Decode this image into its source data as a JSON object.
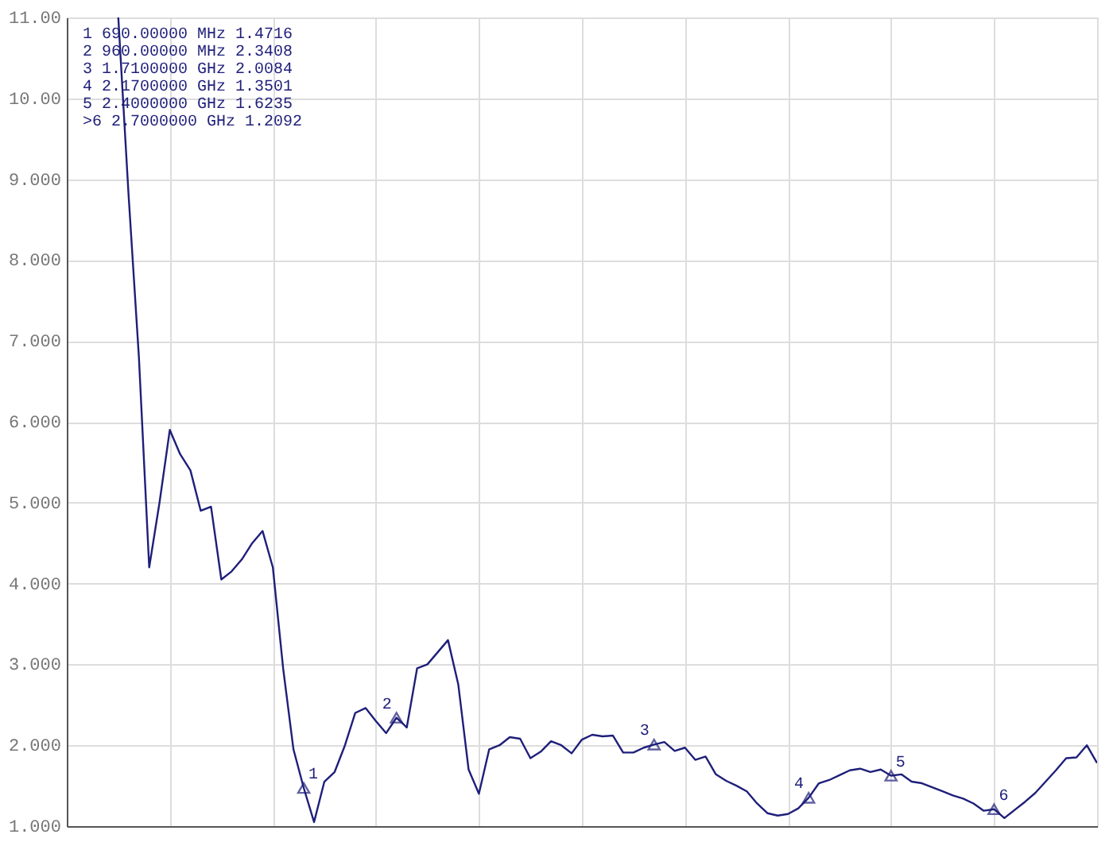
{
  "chart_data": {
    "type": "line",
    "categories": [
      null,
      null,
      null,
      null,
      null,
      null,
      null,
      null,
      null,
      null,
      null,
      null,
      null,
      null,
      null,
      null,
      null,
      null,
      null,
      null,
      null,
      null,
      null,
      null,
      null,
      null,
      null,
      null,
      null,
      null,
      null,
      null,
      null,
      null,
      null,
      null,
      null,
      null,
      null,
      null,
      null,
      null,
      null,
      null,
      null,
      null,
      null,
      null,
      null,
      null,
      null,
      null,
      null,
      null,
      null,
      null,
      null,
      null,
      null,
      null,
      null,
      null,
      null,
      null,
      null,
      null,
      null,
      null,
      null,
      null,
      null,
      null,
      null,
      null,
      null,
      null,
      null,
      null,
      null,
      null,
      null,
      null,
      null,
      null,
      null,
      null,
      null,
      null,
      null,
      null,
      null,
      null,
      null,
      null,
      null,
      null,
      null,
      null,
      null,
      null,
      null
    ],
    "series": [
      {
        "color": "#1f1f7a",
        "values": [
          null,
          null,
          null,
          null,
          null,
          11,
          8.8,
          6.8,
          4.2,
          5.0,
          5.9,
          5.6,
          5.4,
          4.9,
          4.95,
          4.05,
          4.15,
          4.3,
          4.5,
          4.65,
          4.2,
          2.95,
          1.95,
          1.4716,
          1.05,
          1.55,
          1.67,
          2.0,
          2.4,
          2.46,
          2.3,
          2.15,
          2.3408,
          2.22,
          2.95,
          3.0,
          3.15,
          3.3,
          2.75,
          1.7,
          1.4,
          1.95,
          2.0,
          2.1,
          2.08,
          1.84,
          1.92,
          2.05,
          2.0,
          1.9,
          2.07,
          2.13,
          2.11,
          2.12,
          1.91,
          1.91,
          1.97,
          2.0084,
          2.04,
          1.93,
          1.97,
          1.82,
          1.86,
          1.64,
          1.56,
          1.5,
          1.43,
          1.28,
          1.16,
          1.13,
          1.15,
          1.22,
          1.3501,
          1.53,
          1.57,
          1.63,
          1.69,
          1.71,
          1.67,
          1.7,
          1.6235,
          1.64,
          1.55,
          1.53,
          1.48,
          1.43,
          1.38,
          1.34,
          1.28,
          1.19,
          1.2092,
          1.1,
          1.2,
          1.3,
          1.41,
          1.55,
          1.69,
          1.84,
          1.85,
          2.0,
          1.78
        ]
      }
    ],
    "ylim": [
      1,
      11
    ],
    "yticks": [
      {
        "value": 1,
        "label": "1.000"
      },
      {
        "value": 2,
        "label": "2.000"
      },
      {
        "value": 3,
        "label": "3.000"
      },
      {
        "value": 4,
        "label": "4.000"
      },
      {
        "value": 5,
        "label": "5.000"
      },
      {
        "value": 6,
        "label": "6.000"
      },
      {
        "value": 7,
        "label": "7.000"
      },
      {
        "value": 8,
        "label": "8.000"
      },
      {
        "value": 9,
        "label": "9.000"
      },
      {
        "value": 10,
        "label": "10.00"
      },
      {
        "value": 11,
        "label": "11.00"
      }
    ],
    "grid": true,
    "tick_labels": "y",
    "line_style": "solid",
    "annotations": [
      "1 690.00000 MHz 1.4716",
      "2 960.00000 MHz 2.3408",
      "3 1.7100000 GHz 2.0084",
      "4 2.1700000 GHz 1.3501",
      "5 2.4000000 GHz 1.6235",
      ">6 2.7000000 GHz 1.2092",
      {
        "text": "1",
        "y": 1.4716
      },
      {
        "text": "2",
        "y": 2.3408
      },
      {
        "text": "3",
        "y": 2.0084
      },
      {
        "text": "4",
        "y": 1.3501
      },
      {
        "text": "5",
        "y": 1.6235
      },
      {
        "text": "6",
        "y": 1.2092
      }
    ]
  }
}
